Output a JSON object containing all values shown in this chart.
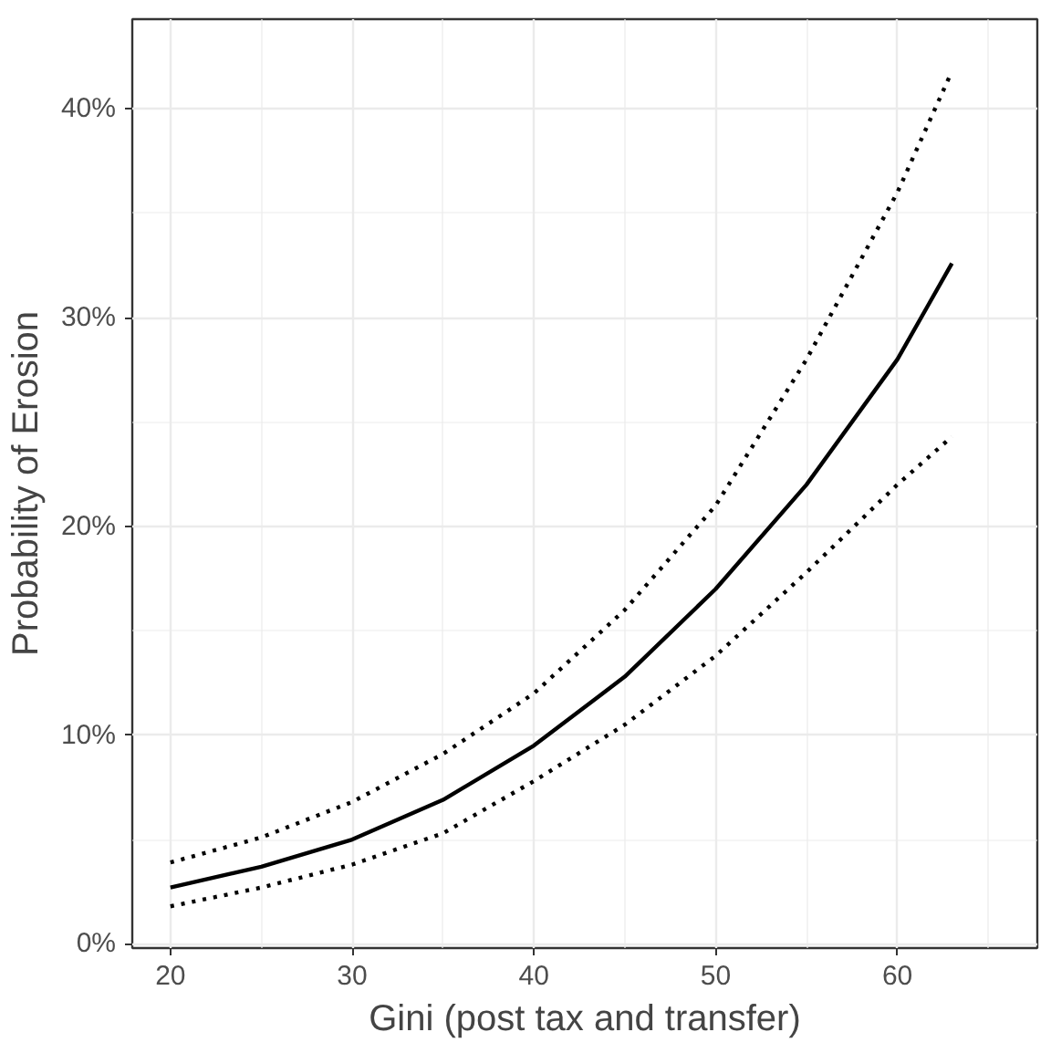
{
  "chart_data": {
    "type": "line",
    "xlabel": "Gini (post tax and transfer)",
    "ylabel": "Probability of Erosion",
    "x": [
      20,
      25,
      30,
      35,
      40,
      45,
      50,
      55,
      60,
      63
    ],
    "series": [
      {
        "color": "#000000",
        "line_style": "solid",
        "values": [
          2.7,
          3.7,
          5.0,
          6.9,
          9.5,
          12.8,
          17.0,
          22.0,
          28.0,
          32.6
        ]
      },
      {
        "color": "#000000",
        "line_style": "dotted",
        "values": [
          3.9,
          5.1,
          6.8,
          9.1,
          12.0,
          16.0,
          21.0,
          28.0,
          36.0,
          41.8
        ]
      },
      {
        "color": "#000000",
        "line_style": "dotted",
        "values": [
          1.8,
          2.7,
          3.8,
          5.3,
          7.8,
          10.5,
          13.8,
          17.8,
          22.0,
          24.3
        ]
      }
    ],
    "xlim": [
      17.9,
      67.7
    ],
    "ylim": [
      -0.2,
      44.3
    ],
    "xticks": [
      20,
      30,
      40,
      50,
      60
    ],
    "yticks": [
      {
        "value": 0,
        "label": "0%"
      },
      {
        "value": 10,
        "label": "10%"
      },
      {
        "value": 20,
        "label": "20%"
      },
      {
        "value": 30,
        "label": "30%"
      },
      {
        "value": 40,
        "label": "40%"
      }
    ],
    "grid": true,
    "marker": "none"
  }
}
